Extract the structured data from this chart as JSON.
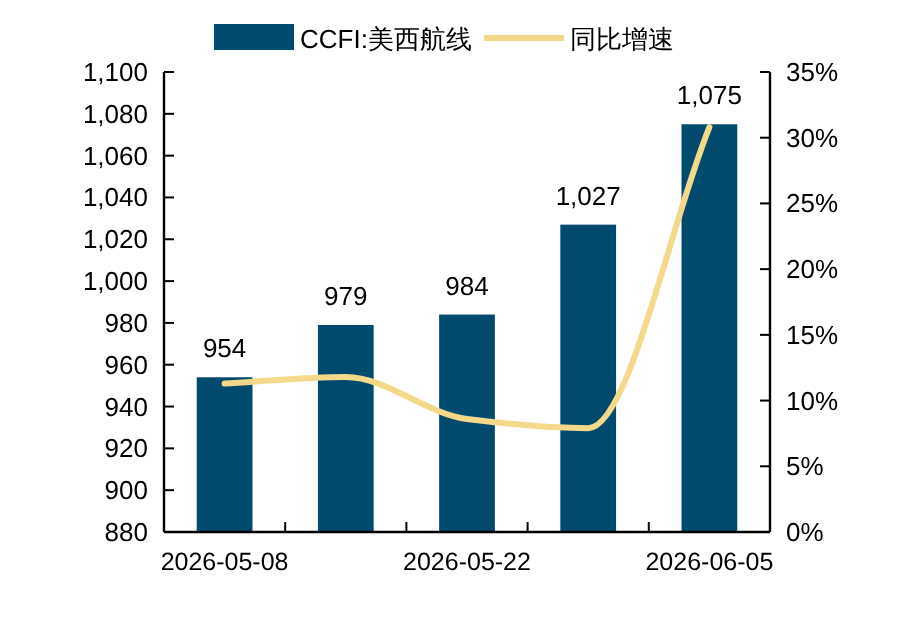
{
  "chart_data": {
    "type": "bar",
    "categories": [
      "2026-05-08",
      null,
      "2026-05-22",
      null,
      "2026-06-05"
    ],
    "series": [
      {
        "name": "CCFI:美西航线",
        "color": "#004a6e",
        "values": [
          954,
          979,
          984,
          1027,
          1075
        ],
        "value_labels": [
          "954",
          "979",
          "984",
          "1,027",
          "1,075"
        ]
      },
      {
        "name": "同比增速",
        "type": "line",
        "axis": "y2",
        "color": "#f5d98a",
        "values": [
          11.3,
          11.8,
          8.6,
          7.9,
          30.8
        ]
      }
    ],
    "ylim": [
      880,
      1100
    ],
    "yticks": [
      {
        "value": 880,
        "label": "880"
      },
      {
        "value": 900,
        "label": "900"
      },
      {
        "value": 920,
        "label": "920"
      },
      {
        "value": 940,
        "label": "940"
      },
      {
        "value": 960,
        "label": "960"
      },
      {
        "value": 980,
        "label": "980"
      },
      {
        "value": 1000,
        "label": "1,000"
      },
      {
        "value": 1020,
        "label": "1,020"
      },
      {
        "value": 1040,
        "label": "1,040"
      },
      {
        "value": 1060,
        "label": "1,060"
      },
      {
        "value": 1080,
        "label": "1,080"
      },
      {
        "value": 1100,
        "label": "1,100"
      }
    ],
    "y2lim": [
      0,
      35
    ],
    "y2ticks": [
      {
        "value": 0,
        "label": "0%"
      },
      {
        "value": 5,
        "label": "5%"
      },
      {
        "value": 10,
        "label": "10%"
      },
      {
        "value": 15,
        "label": "15%"
      },
      {
        "value": 20,
        "label": "20%"
      },
      {
        "value": 25,
        "label": "25%"
      },
      {
        "value": 30,
        "label": "30%"
      },
      {
        "value": 35,
        "label": "35%"
      }
    ],
    "legend": "top",
    "grid": false
  }
}
